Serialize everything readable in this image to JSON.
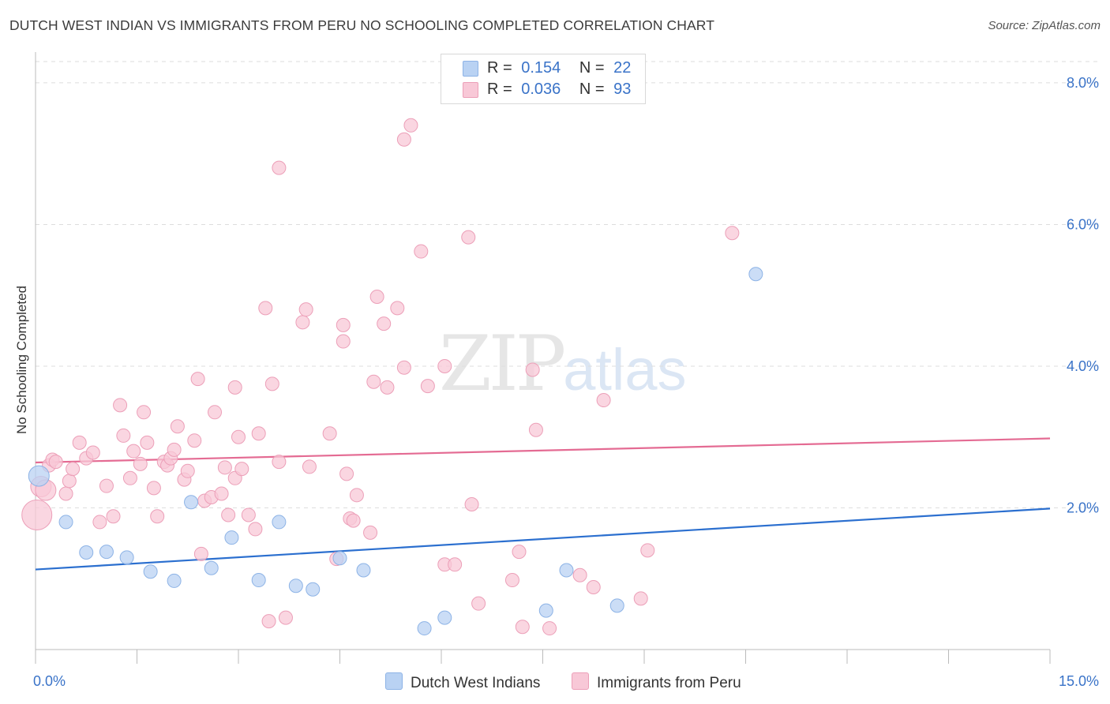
{
  "title": "DUTCH WEST INDIAN VS IMMIGRANTS FROM PERU NO SCHOOLING COMPLETED CORRELATION CHART",
  "source": "Source: ZipAtlas.com",
  "watermark": {
    "zip": "ZIP",
    "atlas": "atlas"
  },
  "colors": {
    "blue_fill": "#b9d2f3",
    "blue_stroke": "#8db3e6",
    "blue_line": "#2b6fcf",
    "pink_fill": "#f8c8d7",
    "pink_stroke": "#ec9fb8",
    "pink_line": "#e46b93",
    "axis_text": "#3a73c8",
    "grid": "#dddddd"
  },
  "legend": {
    "rows": [
      {
        "r_label": "R =",
        "r_value": "0.154",
        "n_label": "N =",
        "n_value": "22"
      },
      {
        "r_label": "R =",
        "r_value": "0.036",
        "n_label": "N =",
        "n_value": "93"
      }
    ]
  },
  "bottom_legend": [
    "Dutch West Indians",
    "Immigrants from Peru"
  ],
  "chart_data": {
    "type": "scatter",
    "title": "DUTCH WEST INDIAN VS IMMIGRANTS FROM PERU NO SCHOOLING COMPLETED CORRELATION CHART",
    "xlabel": "",
    "ylabel": "No Schooling Completed",
    "xlim": [
      0,
      15
    ],
    "ylim": [
      0,
      8.3
    ],
    "x_tick_labels": [
      "0.0%",
      "15.0%"
    ],
    "y_tick_values": [
      2,
      4,
      6,
      8
    ],
    "y_tick_labels": [
      "2.0%",
      "4.0%",
      "6.0%",
      "8.0%"
    ],
    "grid": true,
    "series": [
      {
        "name": "Dutch West Indians",
        "color": "blue",
        "trend": {
          "x": [
            0,
            15
          ],
          "y": [
            1.13,
            1.99
          ]
        },
        "points": [
          [
            0.05,
            2.45
          ],
          [
            0.45,
            1.8
          ],
          [
            0.75,
            1.37
          ],
          [
            1.05,
            1.38
          ],
          [
            1.35,
            1.3
          ],
          [
            1.7,
            1.1
          ],
          [
            2.05,
            0.97
          ],
          [
            2.3,
            2.08
          ],
          [
            2.6,
            1.15
          ],
          [
            2.9,
            1.58
          ],
          [
            3.3,
            0.98
          ],
          [
            3.6,
            1.8
          ],
          [
            3.85,
            0.9
          ],
          [
            4.1,
            0.85
          ],
          [
            4.5,
            1.29
          ],
          [
            4.85,
            1.12
          ],
          [
            5.75,
            0.3
          ],
          [
            6.05,
            0.45
          ],
          [
            7.55,
            0.55
          ],
          [
            7.85,
            1.12
          ],
          [
            8.6,
            0.62
          ],
          [
            10.65,
            5.3
          ]
        ]
      },
      {
        "name": "Immigrants from Peru",
        "color": "pink",
        "trend": {
          "x": [
            0,
            15
          ],
          "y": [
            2.64,
            2.98
          ]
        },
        "points": [
          [
            0.02,
            1.9
          ],
          [
            0.08,
            2.3
          ],
          [
            0.15,
            2.25
          ],
          [
            0.2,
            2.6
          ],
          [
            0.25,
            2.68
          ],
          [
            0.3,
            2.65
          ],
          [
            0.45,
            2.2
          ],
          [
            0.5,
            2.38
          ],
          [
            0.55,
            2.55
          ],
          [
            0.65,
            2.92
          ],
          [
            0.75,
            2.7
          ],
          [
            0.85,
            2.78
          ],
          [
            0.95,
            1.8
          ],
          [
            1.05,
            2.31
          ],
          [
            1.15,
            1.88
          ],
          [
            1.25,
            3.45
          ],
          [
            1.3,
            3.02
          ],
          [
            1.4,
            2.42
          ],
          [
            1.45,
            2.8
          ],
          [
            1.55,
            2.62
          ],
          [
            1.6,
            3.35
          ],
          [
            1.65,
            2.92
          ],
          [
            1.75,
            2.28
          ],
          [
            1.8,
            1.88
          ],
          [
            1.9,
            2.65
          ],
          [
            1.95,
            2.6
          ],
          [
            2.0,
            2.7
          ],
          [
            2.05,
            2.82
          ],
          [
            2.1,
            3.15
          ],
          [
            2.2,
            2.4
          ],
          [
            2.25,
            2.52
          ],
          [
            2.35,
            2.95
          ],
          [
            2.4,
            3.82
          ],
          [
            2.45,
            1.35
          ],
          [
            2.5,
            2.1
          ],
          [
            2.6,
            2.15
          ],
          [
            2.65,
            3.35
          ],
          [
            2.75,
            2.2
          ],
          [
            2.8,
            2.57
          ],
          [
            2.85,
            1.9
          ],
          [
            2.95,
            2.42
          ],
          [
            2.95,
            3.7
          ],
          [
            3.05,
            2.55
          ],
          [
            3.15,
            1.9
          ],
          [
            3.25,
            1.7
          ],
          [
            3.3,
            3.05
          ],
          [
            3.45,
            0.4
          ],
          [
            3.6,
            2.65
          ],
          [
            3.4,
            4.82
          ],
          [
            3.5,
            3.75
          ],
          [
            3.6,
            6.8
          ],
          [
            3.7,
            0.45
          ],
          [
            3.95,
            4.62
          ],
          [
            4.05,
            2.58
          ],
          [
            4.35,
            3.05
          ],
          [
            4.45,
            1.28
          ],
          [
            4.55,
            4.35
          ],
          [
            4.6,
            2.48
          ],
          [
            4.55,
            4.58
          ],
          [
            4.65,
            1.85
          ],
          [
            4.75,
            2.18
          ],
          [
            4.7,
            1.82
          ],
          [
            4.95,
            1.65
          ],
          [
            5.0,
            3.78
          ],
          [
            5.05,
            4.98
          ],
          [
            5.15,
            4.6
          ],
          [
            5.2,
            3.7
          ],
          [
            5.35,
            4.82
          ],
          [
            5.45,
            7.2
          ],
          [
            5.55,
            7.4
          ],
          [
            5.7,
            5.62
          ],
          [
            5.8,
            3.72
          ],
          [
            6.05,
            4.0
          ],
          [
            6.05,
            1.2
          ],
          [
            6.2,
            1.2
          ],
          [
            6.4,
            5.82
          ],
          [
            6.45,
            2.05
          ],
          [
            6.55,
            0.65
          ],
          [
            7.05,
            0.98
          ],
          [
            7.15,
            1.38
          ],
          [
            7.2,
            0.32
          ],
          [
            7.35,
            3.95
          ],
          [
            7.4,
            3.1
          ],
          [
            7.6,
            0.3
          ],
          [
            8.05,
            1.05
          ],
          [
            8.25,
            0.88
          ],
          [
            8.4,
            3.52
          ],
          [
            8.95,
            0.72
          ],
          [
            9.05,
            1.4
          ],
          [
            10.3,
            5.88
          ],
          [
            5.45,
            3.98
          ],
          [
            4.0,
            4.8
          ],
          [
            3.0,
            3.0
          ]
        ]
      }
    ]
  }
}
